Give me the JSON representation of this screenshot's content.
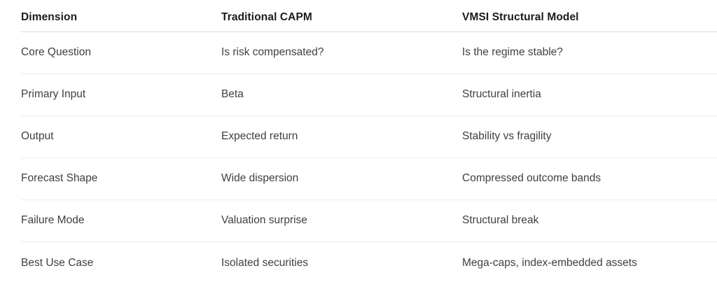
{
  "table": {
    "headers": [
      "Dimension",
      "Traditional CAPM",
      "VMSI Structural Model"
    ],
    "rows": [
      [
        "Core Question",
        "Is risk compensated?",
        "Is the regime stable?"
      ],
      [
        "Primary Input",
        "Beta",
        "Structural inertia"
      ],
      [
        "Output",
        "Expected return",
        "Stability vs fragility"
      ],
      [
        "Forecast Shape",
        "Wide dispersion",
        "Compressed outcome bands"
      ],
      [
        "Failure Mode",
        "Valuation surprise",
        "Structural break"
      ],
      [
        "Best Use Case",
        "Isolated securities",
        "Mega-caps, index-embedded assets"
      ]
    ],
    "colors": {
      "background": "#ffffff",
      "header_text": "#1b1b1b",
      "body_text": "#404040",
      "header_border": "#d9d9d9",
      "row_border": "#ececec"
    }
  }
}
